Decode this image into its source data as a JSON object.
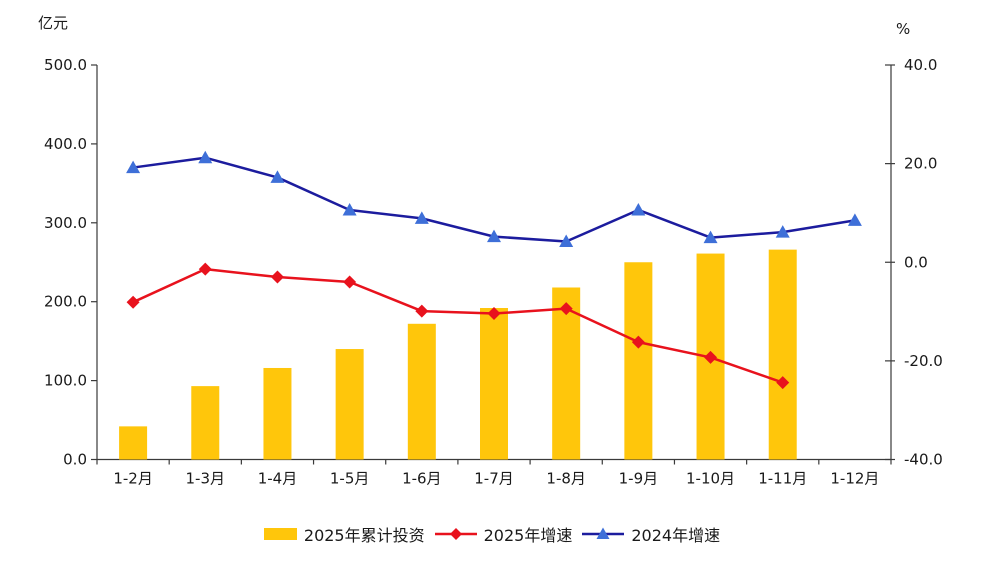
{
  "chart_data": {
    "type": "combo",
    "categories": [
      "1-2月",
      "1-3月",
      "1-4月",
      "1-5月",
      "1-6月",
      "1-7月",
      "1-8月",
      "1-9月",
      "1-10月",
      "1-11月",
      "1-12月"
    ],
    "left_axis": {
      "label": "亿元",
      "min": 0,
      "max": 500,
      "ticks": [
        "500.0",
        "400.0",
        "300.0",
        "200.0",
        "100.0",
        "0.0"
      ]
    },
    "right_axis": {
      "label": "%",
      "min": -40,
      "max": 40,
      "ticks": [
        "40.0",
        "20.0",
        "0.0",
        "-20.0",
        "-40.0"
      ]
    },
    "grid": false,
    "legend_position": "bottom",
    "series": [
      {
        "name": "2025年累计投资",
        "type": "bar",
        "axis": "left",
        "color": "#FFC60B",
        "values": [
          42,
          93,
          116,
          140,
          172,
          192,
          218,
          250,
          261,
          266,
          null
        ]
      },
      {
        "name": "2025年增速",
        "type": "line",
        "axis": "right",
        "color": "#E8121D",
        "marker": "diamond",
        "marker_color": "#E8121D",
        "values": [
          -8.1,
          -1.4,
          -3.0,
          -4.0,
          -9.9,
          -10.4,
          -9.4,
          -16.2,
          -19.3,
          -24.4,
          null
        ]
      },
      {
        "name": "2024年增速",
        "type": "line",
        "axis": "right",
        "color": "#1C1C9E",
        "marker": "triangle",
        "marker_color": "#3E6FD8",
        "values": [
          19.2,
          21.2,
          17.2,
          10.6,
          8.9,
          5.2,
          4.2,
          10.6,
          5.0,
          6.1,
          8.5
        ]
      }
    ],
    "axis_color": "#3a3a3a",
    "text_color": "#1a1a1a"
  }
}
